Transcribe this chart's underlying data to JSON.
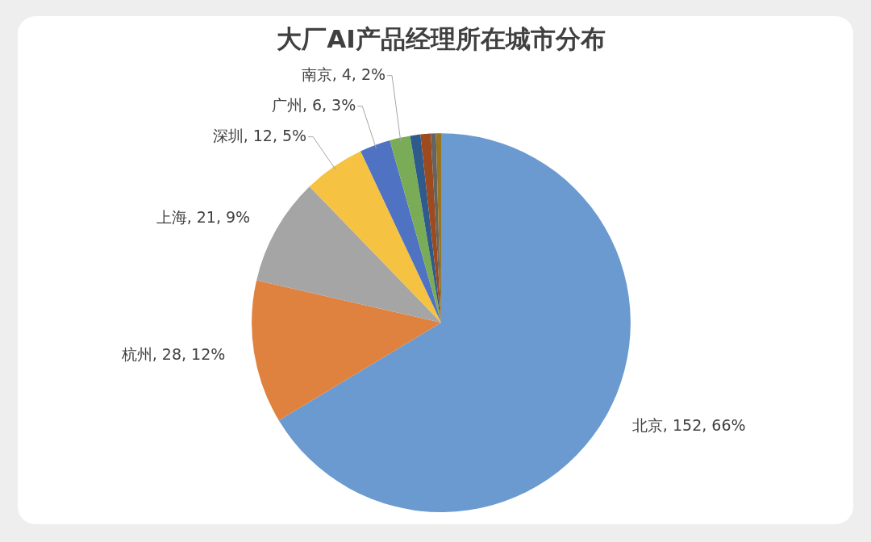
{
  "chart_data": {
    "type": "pie",
    "title": "大厂AI产品经理所在城市分布",
    "categories": [
      "北京",
      "杭州",
      "上海",
      "深圳",
      "广州",
      "南京",
      null,
      null,
      null,
      null
    ],
    "values": [
      152,
      28,
      21,
      12,
      6,
      4,
      2,
      2,
      1,
      1
    ],
    "value_labels": [
      "152, 66%",
      "28, 12%",
      "21, 9%",
      "12, 5%",
      "6, 3%",
      "4, 2%",
      null,
      null,
      null,
      null
    ],
    "colors": [
      "#6a9ad0",
      "#e0823f",
      "#a5a5a5",
      "#f5c242",
      "#4f72c2",
      "#7aac57",
      "#2e5a8c",
      "#9c4a1e",
      "#646464",
      "#987520"
    ],
    "legend": false
  }
}
